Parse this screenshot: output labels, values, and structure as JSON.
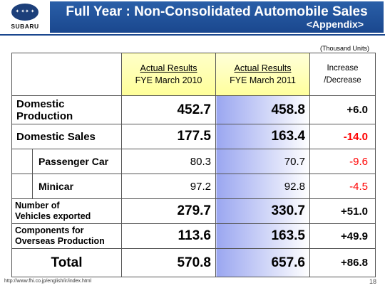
{
  "header": {
    "logo_text": "SUBARU",
    "title": "Full Year : Non-Consolidated Automobile Sales",
    "subtitle": "<Appendix>"
  },
  "units": "(Thousand Units)",
  "columns": {
    "col2_line1": "Actual Results",
    "col2_line2": "FYE March 2010",
    "col3_line1": "Actual Results",
    "col3_line2": "FYE March 2011",
    "col4_line1": "Increase",
    "col4_line2": "/Decrease"
  },
  "rows": [
    {
      "label_line1": "Domestic",
      "label_line2": "Production",
      "fy2010": "452.7",
      "fy2011": "458.8",
      "change": "+6.0"
    },
    {
      "label": "Domestic Sales",
      "fy2010": "177.5",
      "fy2011": "163.4",
      "change": "-14.0"
    },
    {
      "label": "Passenger Car",
      "fy2010": "80.3",
      "fy2011": "70.7",
      "change": "-9.6"
    },
    {
      "label": "Minicar",
      "fy2010": "97.2",
      "fy2011": "92.8",
      "change": "-4.5"
    },
    {
      "label_line1": "Number of",
      "label_line2": "Vehicles exported",
      "fy2010": "279.7",
      "fy2011": "330.7",
      "change": "+51.0"
    },
    {
      "label_line1": "Components for",
      "label_line2": "Overseas Production",
      "fy2010": "113.6",
      "fy2011": "163.5",
      "change": "+49.9"
    },
    {
      "label": "Total",
      "fy2010": "570.8",
      "fy2011": "657.6",
      "change": "+86.8"
    }
  ],
  "footer": {
    "url": "http://www.fhi.co.jp/english/ir/index.html",
    "page": "18"
  },
  "colors": {
    "title_band": "#1a478e",
    "highlight_yellow": "#ffff99",
    "highlight_blue": "#9aa6f0",
    "negative": "#ff0000"
  }
}
